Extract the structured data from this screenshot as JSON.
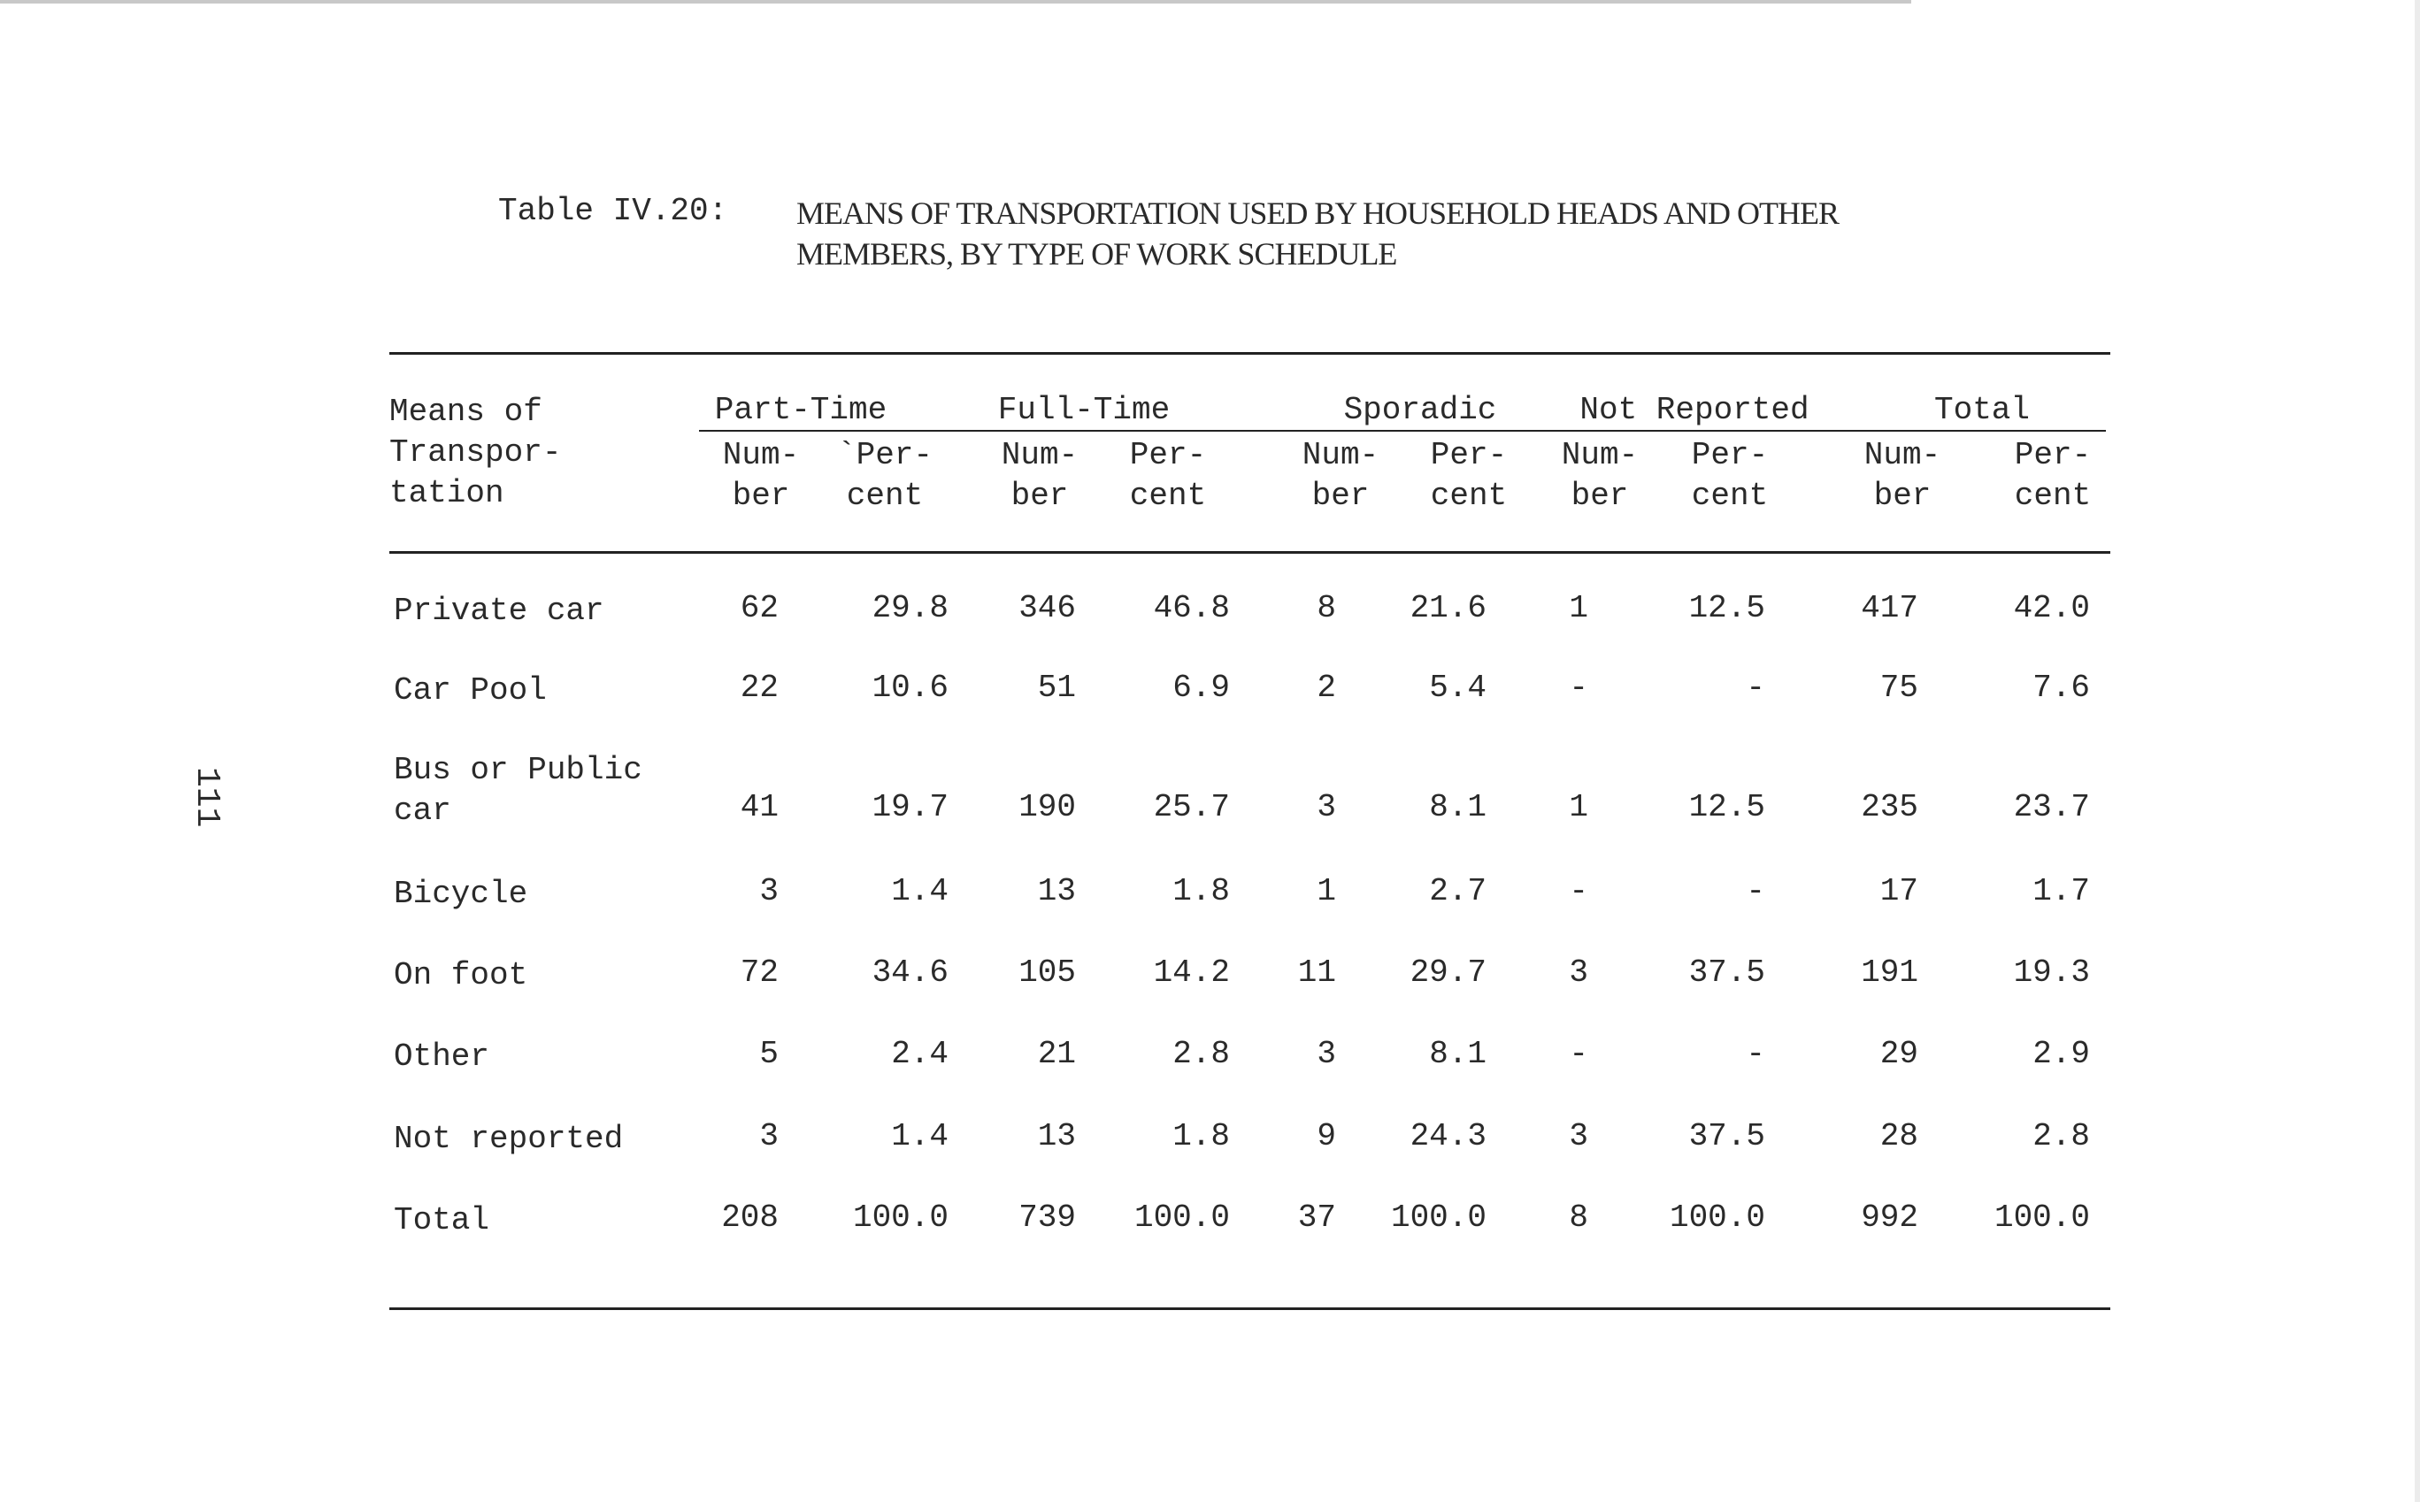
{
  "caption": {
    "label": "Table IV.20:",
    "title_line1": "MEANS OF TRANSPORTATION USED BY HOUSEHOLD HEADS AND OTHER",
    "title_line2": "MEMBERS, BY TYPE OF WORK SCHEDULE"
  },
  "header": {
    "row_label_line1": "Means of",
    "row_label_line2": "Transpor-",
    "row_label_line3": "tation",
    "groups": [
      "Part-Time",
      "Full-Time",
      "Sporadic",
      "Not Reported",
      "Total"
    ],
    "number_line1": "Num-",
    "number_line2": "ber",
    "percent_line1": "Per-",
    "percent_line1_first": "`Per-",
    "percent_line2": "cent"
  },
  "rows": [
    {
      "label": "Private car",
      "label2": "",
      "values": [
        "62",
        "29.8",
        "346",
        "46.8",
        "8",
        "21.6",
        "1",
        "12.5",
        "417",
        "42.0"
      ]
    },
    {
      "label": "Car Pool",
      "label2": "",
      "values": [
        "22",
        "10.6",
        "51",
        "6.9",
        "2",
        "5.4",
        "-",
        "-",
        "75",
        "7.6"
      ]
    },
    {
      "label": "Bus or Public",
      "label2": "car",
      "values": [
        "41",
        "19.7",
        "190",
        "25.7",
        "3",
        "8.1",
        "1",
        "12.5",
        "235",
        "23.7"
      ]
    },
    {
      "label": "Bicycle",
      "label2": "",
      "values": [
        "3",
        "1.4",
        "13",
        "1.8",
        "1",
        "2.7",
        "-",
        "-",
        "17",
        "1.7"
      ]
    },
    {
      "label": "On foot",
      "label2": "",
      "values": [
        "72",
        "34.6",
        "105",
        "14.2",
        "11",
        "29.7",
        "3",
        "37.5",
        "191",
        "19.3"
      ]
    },
    {
      "label": "Other",
      "label2": "",
      "values": [
        "5",
        "2.4",
        "21",
        "2.8",
        "3",
        "8.1",
        "-",
        "-",
        "29",
        "2.9"
      ]
    },
    {
      "label": "Not reported",
      "label2": "",
      "values": [
        "3",
        "1.4",
        "13",
        "1.8",
        "9",
        "24.3",
        "3",
        "37.5",
        "28",
        "2.8"
      ]
    },
    {
      "label": "Total",
      "label2": "",
      "values": [
        "208",
        "100.0",
        "739",
        "100.0",
        "37",
        "100.0",
        "8",
        "100.0",
        "992",
        "100.0"
      ]
    }
  ],
  "page_number": "111"
}
